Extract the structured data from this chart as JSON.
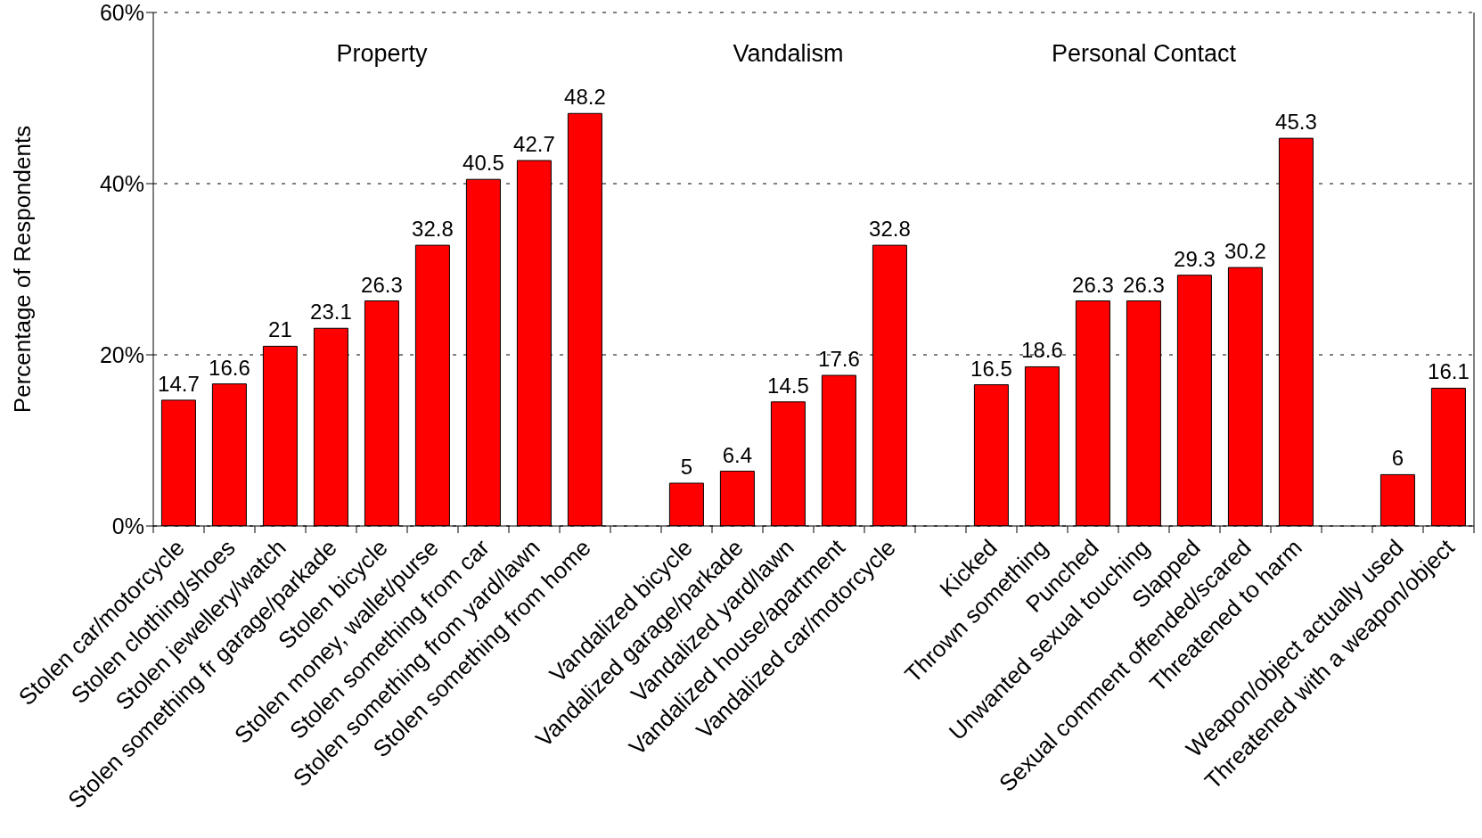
{
  "chart_data": {
    "type": "bar",
    "ylabel": "Percentage of Respondents",
    "categories": [
      "Stolen car/motorcycle",
      "Stolen clothing/shoes",
      "Stolen jewellery/watch",
      "Stolen something fr garage/parkade",
      "Stolen bicycle",
      "Stolen money, wallet/purse",
      "Stolen something from car",
      "Stolen something from yard/lawn",
      "Stolen something from home",
      null,
      "Vandalized bicycle",
      "Vandalized garage/parkade",
      "Vandalized yard/lawn",
      "Vandalized house/apartment",
      "Vandalized car/motorcycle",
      null,
      "Kicked",
      "Thrown something",
      "Punched",
      "Unwanted sexual touching",
      "Slapped",
      "Sexual comment offended/scared",
      "Threatened to harm",
      null,
      "Weapon/object actually used",
      "Threatened with a weapon/object"
    ],
    "values": [
      14.7,
      16.6,
      21,
      23.1,
      26.3,
      32.8,
      40.5,
      42.7,
      48.2,
      null,
      5,
      6.4,
      14.5,
      17.6,
      32.8,
      null,
      16.5,
      18.6,
      26.3,
      26.3,
      29.3,
      30.2,
      45.3,
      null,
      6,
      16.1
    ],
    "color": "#ff0000",
    "ylim": [
      0,
      60
    ],
    "yticks": [
      {
        "value": 0,
        "label": "0%"
      },
      {
        "value": 20,
        "label": "20%"
      },
      {
        "value": 40,
        "label": "40%"
      },
      {
        "value": 60,
        "label": "60%"
      }
    ],
    "grid": "y",
    "data_labels": true,
    "annotations": [
      "Property",
      "Vandalism",
      "Personal Contact"
    ]
  }
}
